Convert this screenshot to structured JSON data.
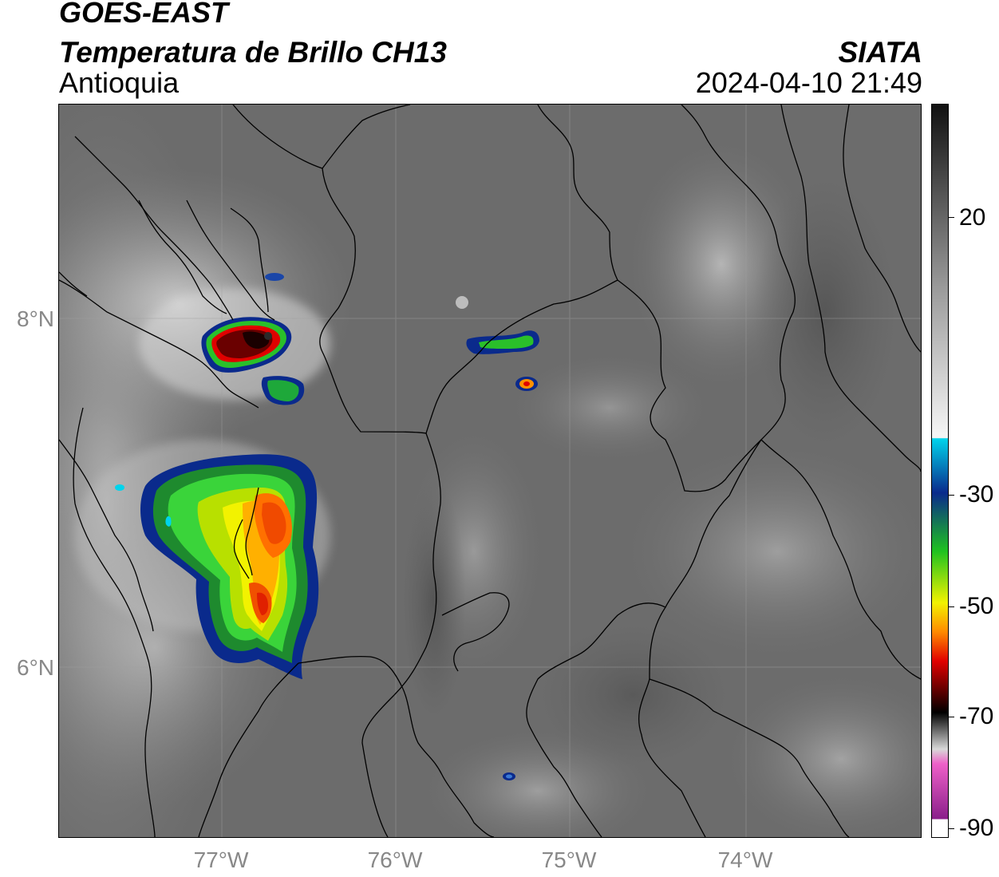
{
  "header": {
    "satellite": "GOES-EAST",
    "product": "Temperatura de Brillo CH13",
    "region": "Antioquia",
    "organization": "SIATA",
    "datetime": "2024-04-10 21:49"
  },
  "map": {
    "lat_labels": [
      "8°N",
      "6°N"
    ],
    "lon_labels": [
      "77°W",
      "76°W",
      "75°W",
      "74°W"
    ],
    "gridlines": true,
    "background_color": "#6e6e6e",
    "boundary_color": "#000000"
  },
  "colorbar": {
    "unit_hint": "brightness temperature",
    "ticks": [
      "20",
      "-30",
      "-50",
      "-70",
      "-90"
    ],
    "range": [
      -90,
      40
    ],
    "colors": {
      "warm_top": "#111111",
      "gray_mid": "#9a9a9a",
      "white": "#f4f4f4",
      "cyan": "#00d4ec",
      "blue": "#0a2a8c",
      "green": "#1fc21f",
      "yellow": "#f2f200",
      "orange": "#ff8a00",
      "red": "#e00000",
      "dark_red": "#600000",
      "black": "#000000",
      "pink": "#ee60c8",
      "purple": "#8a1f8a"
    }
  }
}
